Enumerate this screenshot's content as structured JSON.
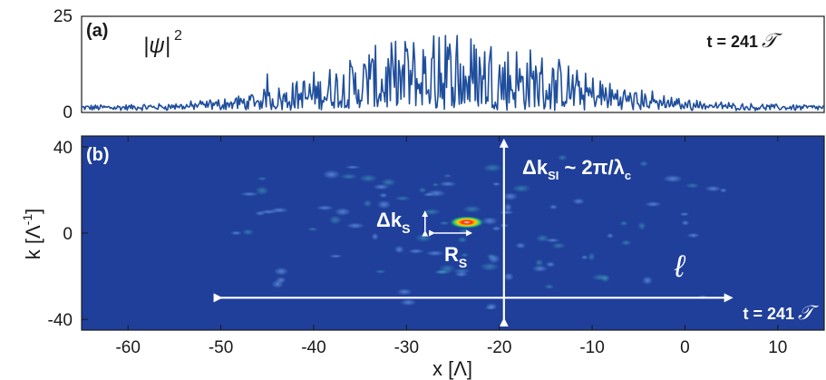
{
  "chart_data": [
    {
      "type": "line",
      "panel_label": "(a)",
      "ylabel": "|ψ|²",
      "ylabel_base": "|ψ|",
      "ylabel_sup": "2",
      "time_label": "t = 241",
      "time_symbol": "𝒯",
      "xlim": [
        -65,
        15
      ],
      "ylim": [
        0,
        25
      ],
      "yticks": [
        "0",
        "25"
      ],
      "envelope": {
        "center": -25,
        "width": 12,
        "peak": 20,
        "baseline": 1.5
      },
      "peaks": [
        {
          "x": -45,
          "y": 10
        },
        {
          "x": -36,
          "y": 12
        },
        {
          "x": -34,
          "y": 15
        },
        {
          "x": -30,
          "y": 16
        },
        {
          "x": -26.5,
          "y": 19.5
        },
        {
          "x": -25.8,
          "y": 20
        },
        {
          "x": -24.5,
          "y": 20
        },
        {
          "x": -21,
          "y": 15
        },
        {
          "x": -16,
          "y": 10
        }
      ],
      "color": "#1f4e9c"
    },
    {
      "type": "heatmap",
      "panel_label": "(b)",
      "xlabel": "x [Λ]",
      "ylabel_base": "k [Λ",
      "ylabel_sup": "-1",
      "ylabel_close": "]",
      "xlim": [
        -65,
        15
      ],
      "ylim": [
        -45,
        45
      ],
      "xticks": [
        "-60",
        "-50",
        "-40",
        "-30",
        "-20",
        "-10",
        "0",
        "10"
      ],
      "xtick_values": [
        -60,
        -50,
        -40,
        -30,
        -20,
        -10,
        0,
        10
      ],
      "yticks": [
        "40",
        "0",
        "-40"
      ],
      "ytick_values": [
        40,
        0,
        -40
      ],
      "background_color": "#1f3f9a",
      "hot_spot": {
        "x": -23.5,
        "k": 5
      },
      "annotations": {
        "dk_si": {
          "prefix": "Δk",
          "sub": "SI",
          "suffix": " ~ 2π/λ",
          "sub2": "c"
        },
        "dk_s": {
          "text": "Δk",
          "sub": "S"
        },
        "r_s": {
          "text": "R",
          "sub": "S"
        },
        "ell": "ℓ",
        "time_label": "t = 241",
        "time_symbol": "𝒯"
      },
      "arrow_spans": {
        "horizontal_x": [
          -50,
          5
        ],
        "horizontal_k": -30,
        "vertical_x": -19.5,
        "vertical_k": [
          -40,
          43
        ],
        "rs_x": [
          -27,
          -23
        ],
        "rs_k": 0,
        "dks_x": -28,
        "dks_k": [
          1,
          10
        ]
      }
    }
  ]
}
